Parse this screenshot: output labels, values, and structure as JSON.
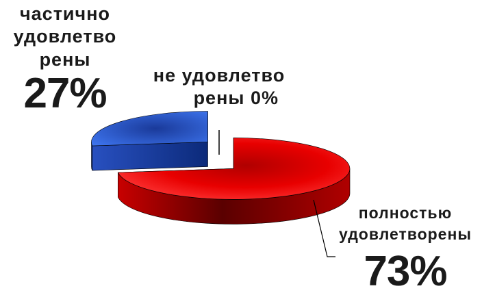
{
  "chart_data": {
    "type": "pie",
    "style": "3d-exploded",
    "slices": [
      {
        "label": "полностью\nудовлетворены",
        "value": 73,
        "value_label": "73%",
        "color": "#e60000"
      },
      {
        "label": "частично\nудовлетво\nрены",
        "value": 27,
        "value_label": "27%",
        "color": "#2e62e0"
      },
      {
        "label": "не удовлетво\nрены",
        "value": 0,
        "value_label": "0%",
        "color": "#ffffff"
      }
    ],
    "legend": "none"
  }
}
